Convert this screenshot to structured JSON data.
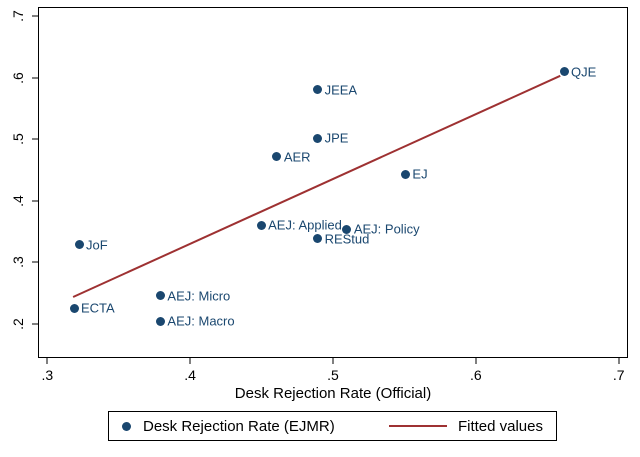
{
  "chart_data": {
    "type": "scatter",
    "title": "",
    "xlabel": "Desk Rejection Rate (Official)",
    "ylabel": "",
    "grid": false,
    "xlim": [
      0.2935,
      0.7065
    ],
    "ylim": [
      0.1448,
      0.7146
    ],
    "x_ticks": {
      "values": [
        0.3,
        0.4,
        0.5,
        0.6,
        0.7
      ],
      "labels": [
        ".3",
        ".4",
        ".5",
        ".6",
        ".7"
      ]
    },
    "y_ticks": {
      "values": [
        0.2,
        0.3,
        0.4,
        0.5,
        0.6,
        0.7
      ],
      "labels": [
        ".2",
        ".3",
        ".4",
        ".5",
        ".6",
        ".7"
      ]
    },
    "colors": {
      "marker": "#1A476F",
      "point_label": "#1A476F",
      "line": "#9E3132",
      "axis": "#000000"
    },
    "series": [
      {
        "name": "Desk Rejection Rate (EJMR)",
        "type": "scatter",
        "points": [
          {
            "label": "ECTA",
            "x": 0.318,
            "y": 0.2275
          },
          {
            "label": "JoF",
            "x": 0.3215,
            "y": 0.3305
          },
          {
            "label": "AEJ: Micro",
            "x": 0.3785,
            "y": 0.2475
          },
          {
            "label": "AEJ: Macro",
            "x": 0.3785,
            "y": 0.206
          },
          {
            "label": "AEJ: Applied",
            "x": 0.449,
            "y": 0.362
          },
          {
            "label": "AER",
            "x": 0.46,
            "y": 0.473
          },
          {
            "label": "JEEA",
            "x": 0.4885,
            "y": 0.5815
          },
          {
            "label": "JPE",
            "x": 0.4885,
            "y": 0.5035
          },
          {
            "label": "REStud",
            "x": 0.4885,
            "y": 0.34
          },
          {
            "label": "AEJ: Policy",
            "x": 0.509,
            "y": 0.3555
          },
          {
            "label": "EJ",
            "x": 0.55,
            "y": 0.445
          },
          {
            "label": "QJE",
            "x": 0.661,
            "y": 0.611
          }
        ]
      },
      {
        "name": "Fitted values",
        "type": "line",
        "endpoints": [
          {
            "x": 0.3175,
            "y": 0.2465
          },
          {
            "x": 0.6585,
            "y": 0.6055
          }
        ]
      }
    ],
    "legend": {
      "position": "bottom",
      "items": [
        {
          "label": "Desk Rejection Rate (EJMR)",
          "marker": "dot"
        },
        {
          "label": "Fitted values",
          "marker": "line"
        }
      ]
    }
  }
}
